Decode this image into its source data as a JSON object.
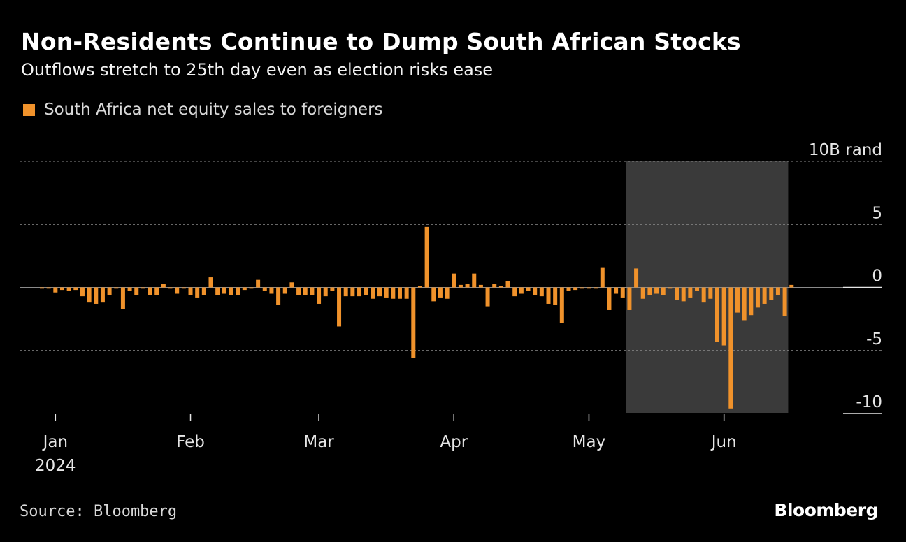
{
  "header": {
    "title": "Non-Residents Continue to Dump South African Stocks",
    "subtitle": "Outflows stretch to 25th day even as election risks ease"
  },
  "legend": {
    "label": "South Africa net equity sales to foreigners",
    "color": "#f0922b"
  },
  "footer": {
    "source": "Source: Bloomberg",
    "brand": "Bloomberg"
  },
  "chart_data": {
    "type": "bar",
    "title": "Non-Residents Continue to Dump South African Stocks",
    "unit_label": "10B rand",
    "ylim": [
      -10,
      10
    ],
    "y_ticks": [
      {
        "value": 10,
        "label": "10B rand"
      },
      {
        "value": 5,
        "label": "5"
      },
      {
        "value": 0,
        "label": "0"
      },
      {
        "value": -5,
        "label": "-5"
      },
      {
        "value": -10,
        "label": "-10"
      }
    ],
    "x_ticks": [
      {
        "index": 2,
        "label": "Jan",
        "sub": "2024"
      },
      {
        "index": 22,
        "label": "Feb",
        "sub": ""
      },
      {
        "index": 41,
        "label": "Mar",
        "sub": ""
      },
      {
        "index": 61,
        "label": "Apr",
        "sub": ""
      },
      {
        "index": 81,
        "label": "May",
        "sub": ""
      },
      {
        "index": 101,
        "label": "Jun",
        "sub": ""
      }
    ],
    "highlight_range": [
      86.5,
      110.5
    ],
    "highlight_color": "#3a3a3a",
    "bar_color": "#f0922b",
    "values": [
      -0.1,
      -0.1,
      -0.4,
      -0.2,
      -0.3,
      -0.2,
      -0.7,
      -1.2,
      -1.3,
      -1.2,
      -0.6,
      -0.1,
      -1.7,
      -0.3,
      -0.6,
      -0.1,
      -0.6,
      -0.6,
      0.3,
      -0.1,
      -0.5,
      -0.1,
      -0.6,
      -0.8,
      -0.6,
      0.8,
      -0.6,
      -0.5,
      -0.6,
      -0.6,
      -0.2,
      -0.1,
      0.6,
      -0.3,
      -0.5,
      -1.4,
      -0.5,
      0.4,
      -0.6,
      -0.6,
      -0.6,
      -1.3,
      -0.7,
      -0.3,
      -3.1,
      -0.7,
      -0.7,
      -0.7,
      -0.6,
      -0.9,
      -0.7,
      -0.8,
      -0.9,
      -0.9,
      -0.9,
      -5.6,
      0.1,
      4.8,
      -1.1,
      -0.8,
      -0.9,
      1.1,
      0.2,
      0.3,
      1.1,
      0.2,
      -1.5,
      0.3,
      0.1,
      0.5,
      -0.7,
      -0.5,
      -0.3,
      -0.6,
      -0.7,
      -1.3,
      -1.4,
      -2.8,
      -0.3,
      -0.2,
      -0.1,
      -0.1,
      -0.1,
      1.6,
      -1.8,
      -0.5,
      -0.8,
      -1.8,
      1.5,
      -0.9,
      -0.6,
      -0.5,
      -0.6,
      -0.1,
      -1.0,
      -1.1,
      -0.8,
      -0.3,
      -1.2,
      -0.9,
      -4.3,
      -4.6,
      -9.6,
      -2.0,
      -2.6,
      -2.2,
      -1.6,
      -1.3,
      -1.0,
      -0.6,
      -2.3,
      0.2
    ]
  }
}
